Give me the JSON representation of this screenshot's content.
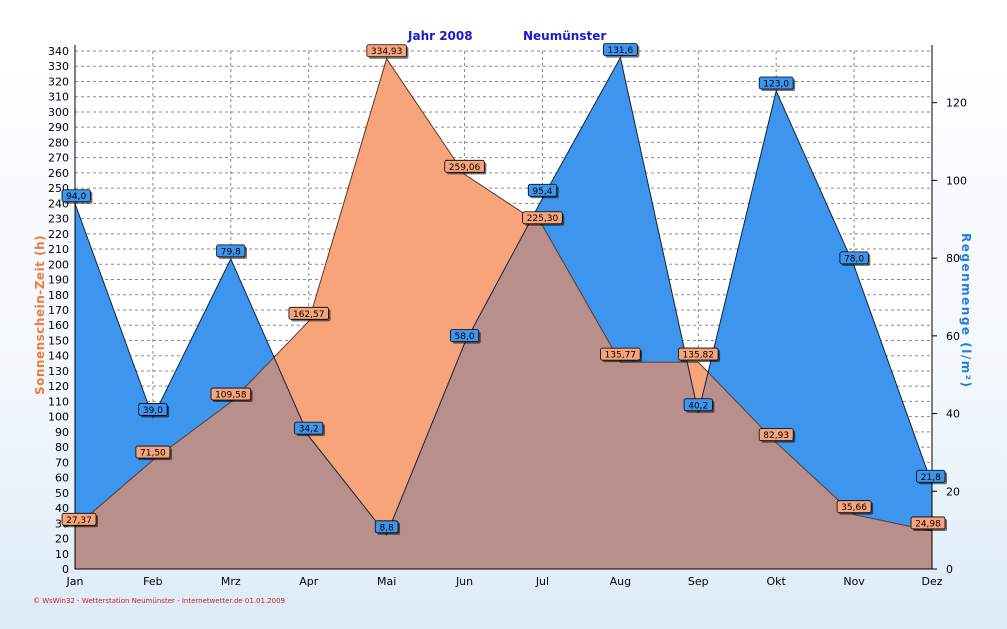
{
  "chart_data": {
    "type": "area",
    "title_left": "Jahr  2008",
    "title_right": "Neumünster",
    "categories": [
      "Jan",
      "Feb",
      "Mrz",
      "Apr",
      "Mai",
      "Jun",
      "Jul",
      "Aug",
      "Sep",
      "Okt",
      "Nov",
      "Dez"
    ],
    "series": [
      {
        "name": "Sonnenschein-Zeit",
        "axis": "left",
        "color": "#f7a47a",
        "values": [
          27.37,
          71.5,
          109.58,
          162.57,
          334.93,
          259.06,
          225.3,
          135.77,
          135.82,
          82.93,
          35.66,
          24.98
        ],
        "labels": [
          "27,37",
          "71,50",
          "109,58",
          "162,57",
          "334,93",
          "259,06",
          "225,30",
          "135,77",
          "135,82",
          "82,93",
          "35,66",
          "24,98"
        ]
      },
      {
        "name": "Regenmenge",
        "axis": "right",
        "color": "#3d95ee",
        "values": [
          94.0,
          39.0,
          79.8,
          34.2,
          8.8,
          58.0,
          95.4,
          131.6,
          40.2,
          123.0,
          78.0,
          21.8
        ],
        "labels": [
          "94,0",
          "39,0",
          "79,8",
          "34,2",
          "8,8",
          "58,0",
          "95,4",
          "131,6",
          "40,2",
          "123,0",
          "78,0",
          "21,8"
        ]
      }
    ],
    "ylabel_left": "Sonnenschein-Zeit  (h)",
    "ylabel_right": "Regenmenge  (l/m²)",
    "ylim_left": [
      0,
      340
    ],
    "ylim_right": [
      0,
      133.3
    ],
    "yticks_left": [
      0,
      10,
      20,
      30,
      40,
      50,
      60,
      70,
      80,
      90,
      100,
      110,
      120,
      130,
      140,
      150,
      160,
      170,
      180,
      190,
      200,
      210,
      220,
      230,
      240,
      250,
      260,
      270,
      280,
      290,
      300,
      310,
      320,
      330,
      340
    ],
    "yticks_right": [
      0,
      20,
      40,
      60,
      80,
      100,
      120
    ],
    "grid": true,
    "overlap_color": "#b88f8a",
    "footer": "© WsWin32 - Wetterstation Neumünster - Internetwetter.de  01.01.2009"
  }
}
